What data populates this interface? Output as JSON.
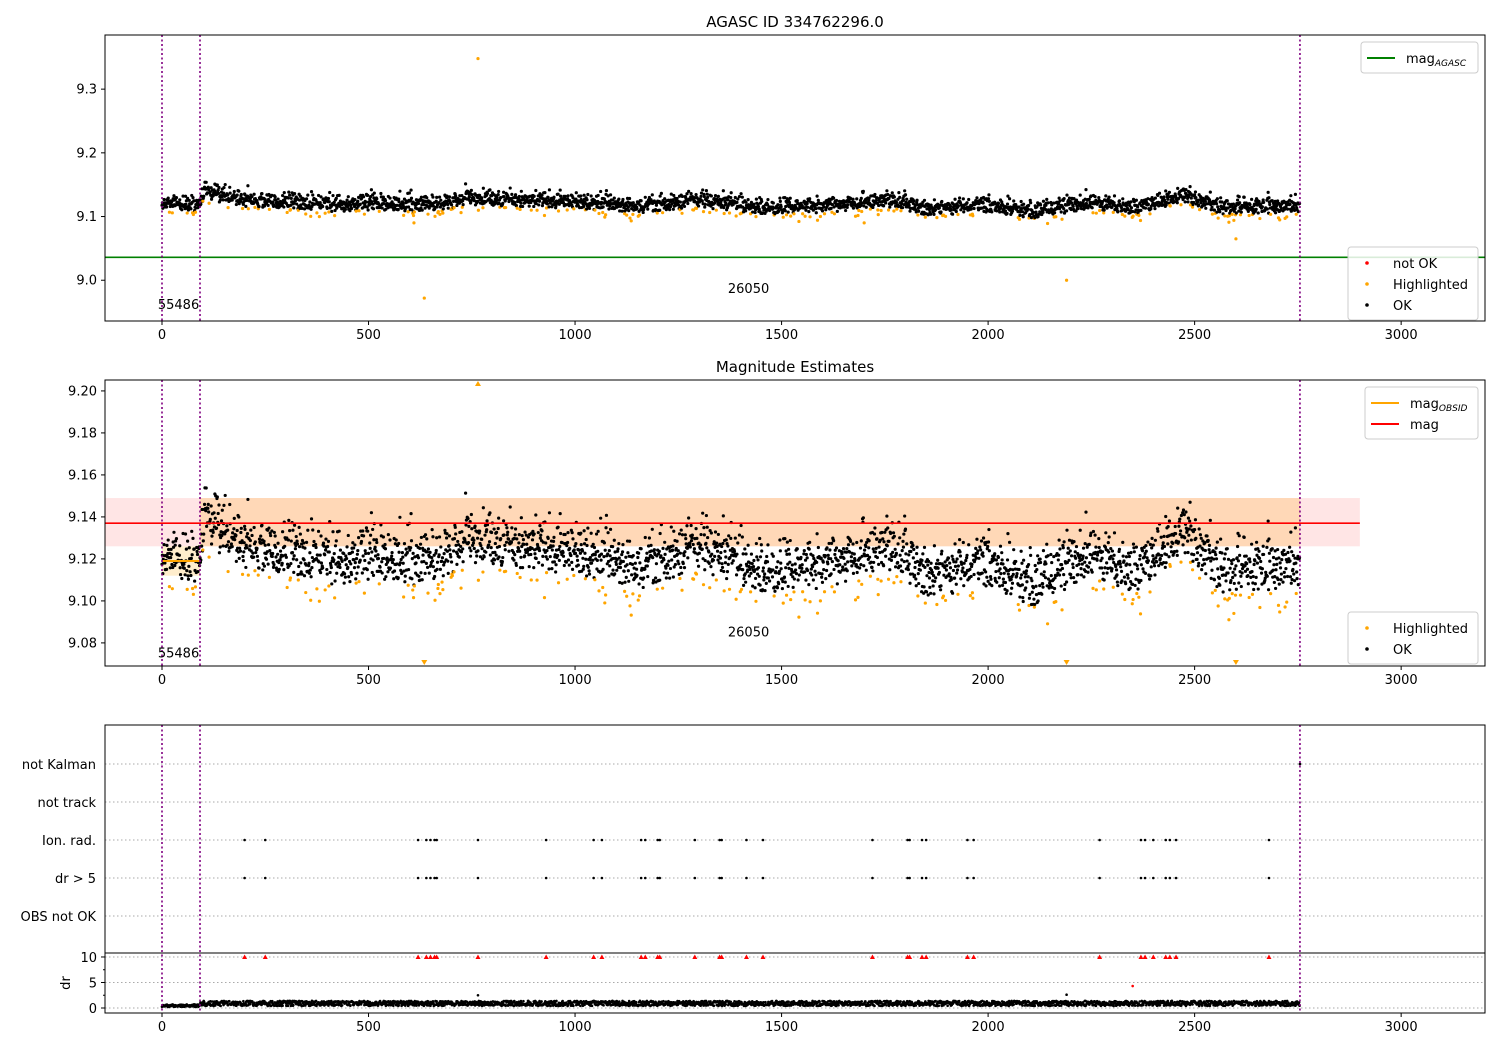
{
  "chart_data": [
    {
      "type": "scatter",
      "title": "AGASC ID 334762296.0",
      "xlabel": "",
      "ylabel": "",
      "xlim": [
        -138,
        3203
      ],
      "ylim": [
        8.936,
        9.385
      ],
      "xticks": [
        0,
        500,
        1000,
        1500,
        2000,
        2500,
        3000
      ],
      "yticks": [
        9.0,
        9.1,
        9.2,
        9.3
      ],
      "hlines": [
        {
          "name": "mag_AGASC",
          "value": 9.036,
          "color": "#008000"
        }
      ],
      "vlines": [
        0,
        92,
        2755
      ],
      "annotations": [
        {
          "text": "55486",
          "x": -10,
          "y": 8.955
        },
        {
          "text": "26050",
          "x": 1370,
          "y": 8.98
        }
      ],
      "legend": [
        {
          "label": "mag",
          "sub": "AGASC",
          "kind": "line",
          "color": "#008000",
          "placement": "top-right"
        },
        {
          "label": "not OK",
          "kind": "point",
          "color": "#ff0000",
          "placement": "lower-right"
        },
        {
          "label": "Highlighted",
          "kind": "point",
          "color": "#ffa500",
          "placement": "lower-right"
        },
        {
          "label": "OK",
          "kind": "point",
          "color": "#000000",
          "placement": "lower-right"
        }
      ],
      "outliers": [
        [
          765,
          9.348
        ],
        [
          635,
          8.972
        ],
        [
          2190,
          9.0
        ],
        [
          2600,
          9.065
        ],
        [
          610,
          9.09
        ],
        [
          1700,
          9.09
        ]
      ]
    },
    {
      "type": "scatter",
      "title": "Magnitude Estimates",
      "xlim": [
        -138,
        3203
      ],
      "ylim": [
        9.069,
        9.2052
      ],
      "xticks": [
        0,
        500,
        1000,
        1500,
        2000,
        2500,
        3000
      ],
      "yticks": [
        9.08,
        9.1,
        9.12,
        9.14,
        9.16,
        9.18,
        9.2
      ],
      "mag": 9.137,
      "mag_band": [
        9.126,
        9.149
      ],
      "mag_band_x": [
        -138,
        2900
      ],
      "obsid_segments": [
        {
          "x": [
            0,
            92
          ],
          "mag": 9.119,
          "band": [
            9.112,
            9.126
          ]
        },
        {
          "x": [
            92,
            2755
          ],
          "mag": 9.137,
          "band": [
            9.126,
            9.149
          ]
        }
      ],
      "vlines": [
        0,
        92,
        2755
      ],
      "annotations": [
        {
          "text": "55486",
          "x": -10,
          "y": 9.073
        },
        {
          "text": "26050",
          "x": 1370,
          "y": 9.083
        }
      ],
      "legend": [
        {
          "label": "mag",
          "sub": "OBSID",
          "kind": "line",
          "color": "#ffa500"
        },
        {
          "label": "mag",
          "kind": "line",
          "color": "#ff0000"
        },
        {
          "label": "Highlighted",
          "kind": "point",
          "color": "#ffa500"
        },
        {
          "label": "OK",
          "kind": "point",
          "color": "#000000"
        }
      ],
      "offscale_markers": [
        {
          "x": 765,
          "dir": "up"
        },
        {
          "x": 635,
          "dir": "down"
        },
        {
          "x": 2190,
          "dir": "down"
        },
        {
          "x": 2600,
          "dir": "down"
        }
      ]
    },
    {
      "type": "scatter",
      "categories": [
        "not Kalman",
        "not track",
        "Ion. rad.",
        "dr > 5",
        "OBS not OK"
      ],
      "flag_times": [
        200,
        250,
        620,
        640,
        650,
        660,
        665,
        765,
        930,
        1045,
        1065,
        1160,
        1170,
        1200,
        1205,
        1290,
        1350,
        1355,
        1415,
        1455,
        1720,
        1805,
        1810,
        1840,
        1850,
        1950,
        1965,
        2270,
        2370,
        2380,
        2400,
        2430,
        2440,
        2455,
        2680
      ],
      "not_kalman_times": [
        2755
      ],
      "dr": {
        "ylabel": "dr",
        "yticks": [
          0,
          5,
          10
        ],
        "ylim": [
          -0.98,
          10.78
        ],
        "typical": [
          0.2,
          1.2
        ],
        "outliers": [
          [
            765,
            2.5
          ],
          [
            2190,
            2.6
          ]
        ],
        "not_ok": [
          [
            2350,
            4.3
          ]
        ]
      },
      "xticks": [
        0,
        500,
        1000,
        1500,
        2000,
        2500,
        3000
      ]
    }
  ],
  "generation": {
    "n": 2755,
    "noise": 0.0075,
    "highlight_below": 0.011,
    "trend": [
      [
        0,
        9.118
      ],
      [
        92,
        9.118
      ],
      [
        100,
        9.138
      ],
      [
        200,
        9.127
      ],
      [
        400,
        9.118
      ],
      [
        520,
        9.122
      ],
      [
        650,
        9.117
      ],
      [
        740,
        9.13
      ],
      [
        800,
        9.126
      ],
      [
        1000,
        9.124
      ],
      [
        1150,
        9.115
      ],
      [
        1300,
        9.125
      ],
      [
        1450,
        9.115
      ],
      [
        1600,
        9.117
      ],
      [
        1760,
        9.126
      ],
      [
        1850,
        9.112
      ],
      [
        2000,
        9.117
      ],
      [
        2120,
        9.108
      ],
      [
        2250,
        9.124
      ],
      [
        2350,
        9.113
      ],
      [
        2470,
        9.134
      ],
      [
        2560,
        9.115
      ],
      [
        2755,
        9.117
      ]
    ]
  }
}
